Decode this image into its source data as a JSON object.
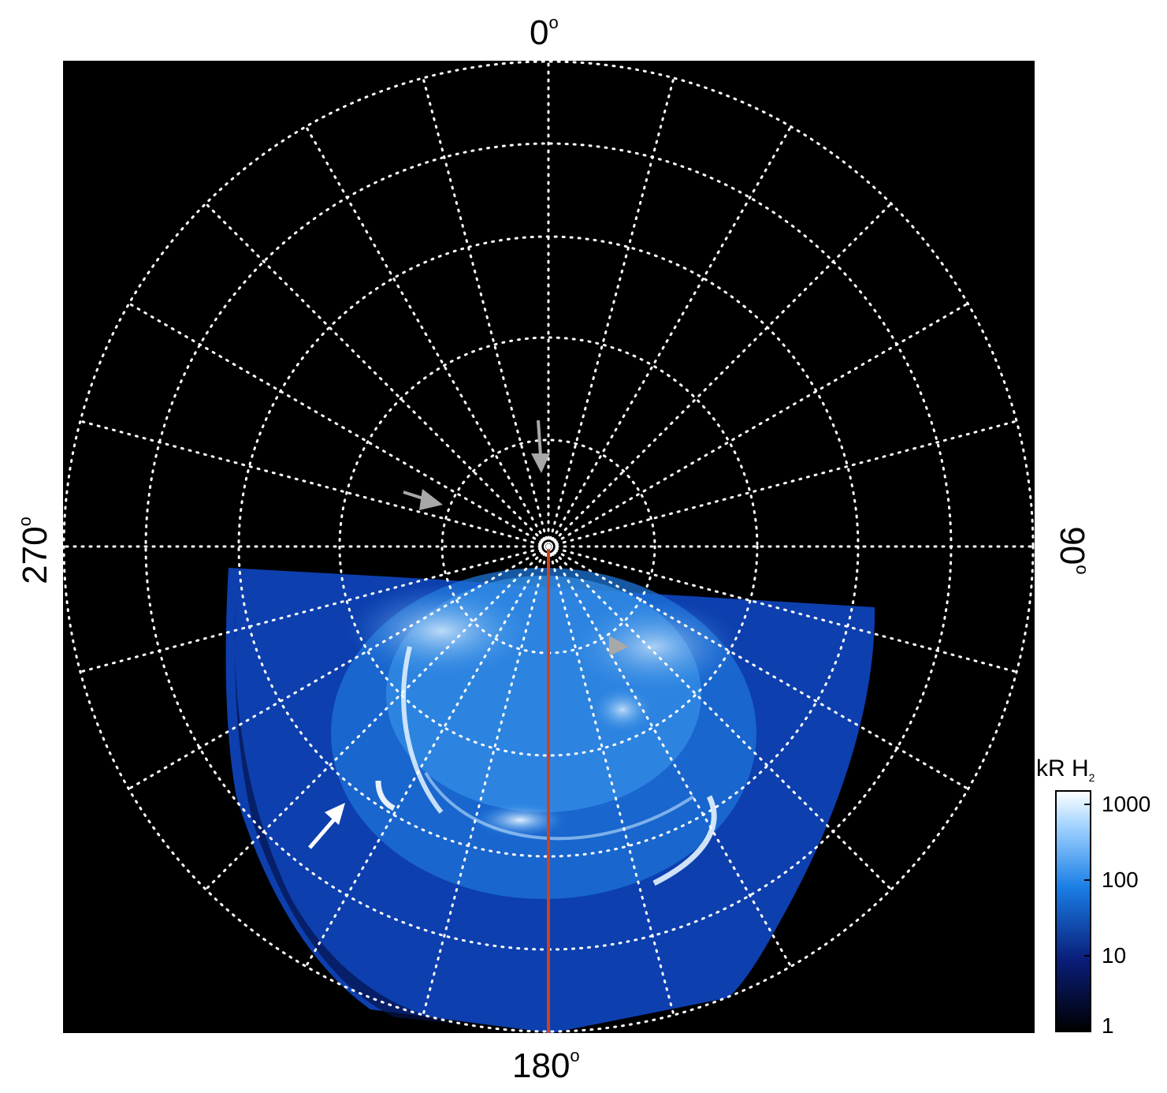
{
  "labels": {
    "top": "0",
    "bottom": "180",
    "left": "270",
    "right": "90",
    "degree_symbol": "o"
  },
  "colorbar": {
    "title_main": "kR H",
    "title_sub": "2",
    "ticks": [
      "1000",
      "100",
      "10",
      "1"
    ]
  },
  "colors": {
    "background": "#000000",
    "grid": "#ffffff",
    "meridian_line": "#d2401a",
    "aurora_dark": "#0a1a6a",
    "aurora_mid": "#1f7fe0",
    "aurora_bright": "#dff1ff",
    "arrow_gray": "#a8a8a8",
    "arrow_white": "#ffffff"
  }
}
